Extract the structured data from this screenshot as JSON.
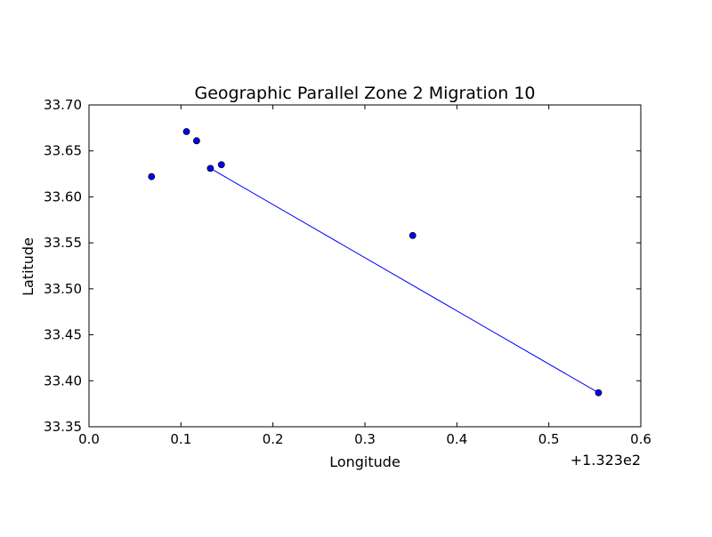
{
  "chart_data": {
    "type": "scatter",
    "title": "Geographic Parallel Zone 2 Migration 10",
    "xlabel": "Longitude",
    "ylabel": "Latitude",
    "x_offset_label": "+1.323e2",
    "xlim": [
      0.0,
      0.6
    ],
    "ylim": [
      33.35,
      33.7
    ],
    "x_ticks": [
      0.0,
      0.1,
      0.2,
      0.3,
      0.4,
      0.5,
      0.6
    ],
    "x_tick_labels": [
      "0.0",
      "0.1",
      "0.2",
      "0.3",
      "0.4",
      "0.5",
      "0.6"
    ],
    "y_ticks": [
      33.35,
      33.4,
      33.45,
      33.5,
      33.55,
      33.6,
      33.65,
      33.7
    ],
    "y_tick_labels": [
      "33.35",
      "33.40",
      "33.45",
      "33.50",
      "33.55",
      "33.60",
      "33.65",
      "33.70"
    ],
    "grid": false,
    "points": [
      {
        "x": 0.068,
        "y": 33.622
      },
      {
        "x": 0.106,
        "y": 33.671
      },
      {
        "x": 0.117,
        "y": 33.661
      },
      {
        "x": 0.132,
        "y": 33.631
      },
      {
        "x": 0.144,
        "y": 33.635
      },
      {
        "x": 0.352,
        "y": 33.558
      },
      {
        "x": 0.554,
        "y": 33.387
      }
    ],
    "line": [
      {
        "x": 0.132,
        "y": 33.631
      },
      {
        "x": 0.554,
        "y": 33.387
      }
    ],
    "colors": {
      "point_fill": "#0000ff",
      "point_stroke": "#000000",
      "line": "#0000ff"
    }
  }
}
